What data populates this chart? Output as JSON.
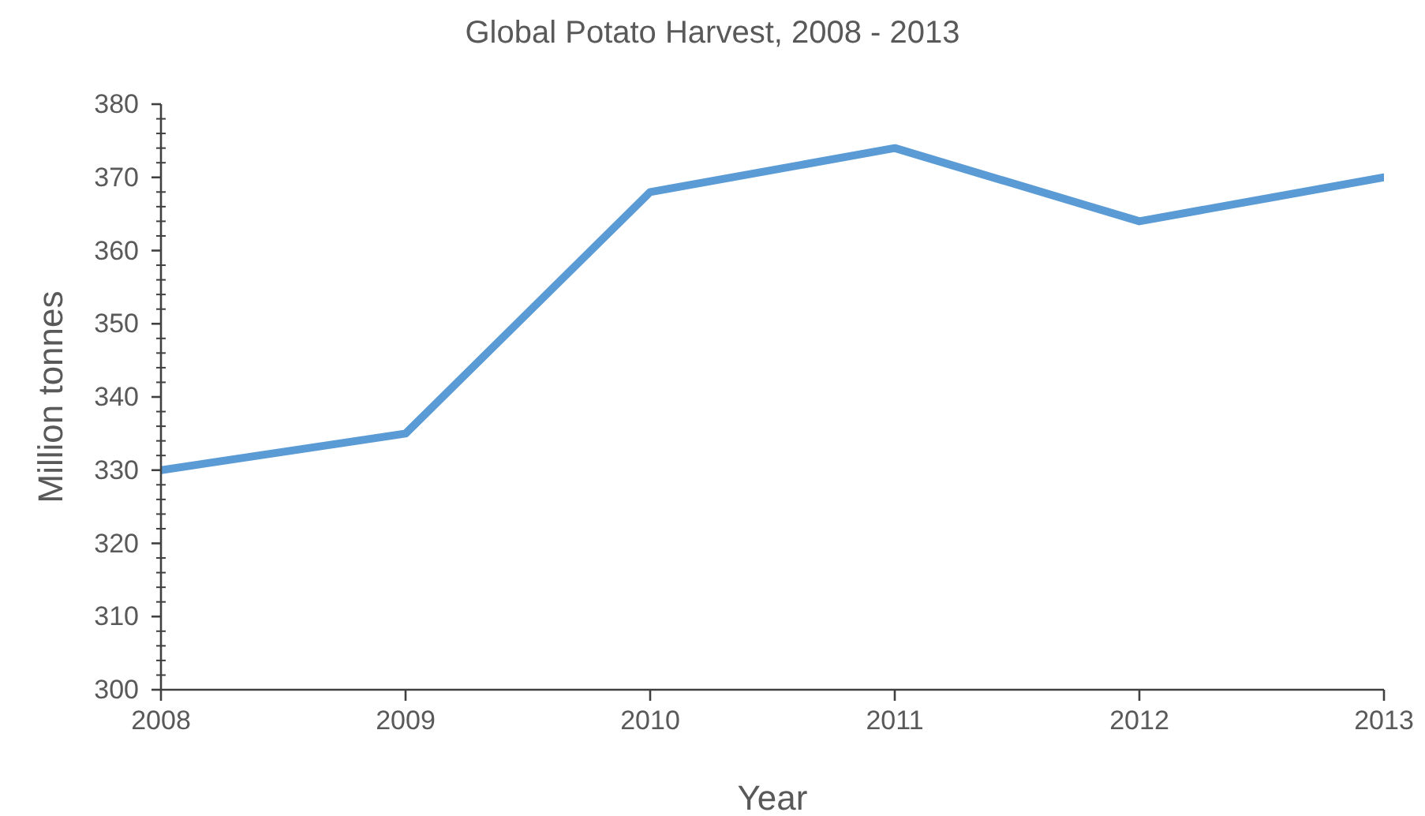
{
  "chart_data": {
    "type": "line",
    "title": "Global Potato Harvest, 2008 - 2013",
    "xlabel": "Year",
    "ylabel": "Million tonnes",
    "categories": [
      "2008",
      "2009",
      "2010",
      "2011",
      "2012",
      "2013"
    ],
    "series": [
      {
        "color": "#5b9bd5",
        "values": [
          330,
          335,
          368,
          374,
          364,
          370
        ]
      }
    ],
    "ylim": [
      300,
      380
    ],
    "yticks": [
      300,
      {
        "value": 302,
        "label": null
      },
      {
        "value": 304,
        "label": null
      },
      {
        "value": 306,
        "label": null
      },
      {
        "value": 308,
        "label": null
      },
      310,
      {
        "value": 312,
        "label": null
      },
      {
        "value": 314,
        "label": null
      },
      {
        "value": 316,
        "label": null
      },
      {
        "value": 318,
        "label": null
      },
      320,
      {
        "value": 322,
        "label": null
      },
      {
        "value": 324,
        "label": null
      },
      {
        "value": 326,
        "label": null
      },
      {
        "value": 328,
        "label": null
      },
      330,
      {
        "value": 332,
        "label": null
      },
      {
        "value": 334,
        "label": null
      },
      {
        "value": 336,
        "label": null
      },
      {
        "value": 338,
        "label": null
      },
      340,
      {
        "value": 342,
        "label": null
      },
      {
        "value": 344,
        "label": null
      },
      {
        "value": 346,
        "label": null
      },
      {
        "value": 348,
        "label": null
      },
      350,
      {
        "value": 352,
        "label": null
      },
      {
        "value": 354,
        "label": null
      },
      {
        "value": 356,
        "label": null
      },
      {
        "value": 358,
        "label": null
      },
      360,
      {
        "value": 362,
        "label": null
      },
      {
        "value": 364,
        "label": null
      },
      {
        "value": 366,
        "label": null
      },
      {
        "value": 368,
        "label": null
      },
      370,
      {
        "value": 372,
        "label": null
      },
      {
        "value": 374,
        "label": null
      },
      {
        "value": 376,
        "label": null
      },
      {
        "value": 378,
        "label": null
      },
      380
    ],
    "marker": "none",
    "line_style": "solid"
  }
}
